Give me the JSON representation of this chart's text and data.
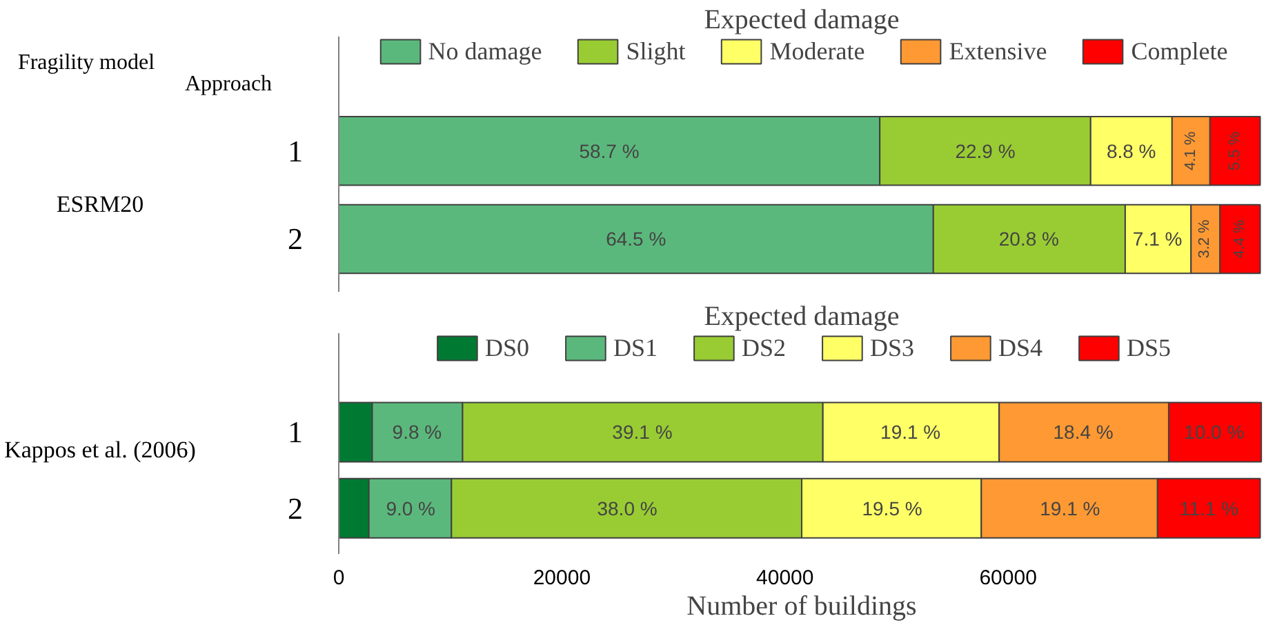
{
  "chart_data": [
    {
      "type": "bar",
      "orientation": "horizontal",
      "stacked": true,
      "title": "Expected damage",
      "categories": [
        "1",
        "2"
      ],
      "xlim": [
        0,
        83000
      ],
      "legend": "top",
      "tick_labels": "y",
      "annotations": [
        "Fragility model",
        "Approach",
        "ESRM20",
        {
          "text": "58.7 %",
          "x": 24245,
          "y": "1"
        },
        {
          "text": "22.9 %",
          "x": 57950,
          "y": "1"
        },
        {
          "text": "8.8 %",
          "x": 71045,
          "y": "1"
        },
        {
          "text": "4.1 %",
          "x": 76375,
          "y": "1"
        },
        {
          "text": "5.5 %",
          "x": 80340,
          "y": "1"
        },
        {
          "text": "64.5 %",
          "x": 26640,
          "y": "2"
        },
        {
          "text": "20.8 %",
          "x": 61870,
          "y": "2"
        },
        {
          "text": "7.1 %",
          "x": 73390,
          "y": "2"
        },
        {
          "text": "3.2 %",
          "x": 77640,
          "y": "2"
        },
        {
          "text": "4.4 %",
          "x": 80775,
          "y": "2"
        }
      ],
      "series": [
        {
          "name": "No damage",
          "color": "#5bb87c",
          "values": [
            48500,
            53300
          ]
        },
        {
          "name": "Slight",
          "color": "#99cc33",
          "values": [
            18900,
            17200
          ]
        },
        {
          "name": "Moderate",
          "color": "#ffff66",
          "values": [
            7300,
            5900
          ]
        },
        {
          "name": "Extensive",
          "color": "#ff9933",
          "values": [
            3400,
            2600
          ]
        },
        {
          "name": "Complete",
          "color": "#ff0000",
          "values": [
            4500,
            3600
          ]
        }
      ]
    },
    {
      "type": "bar",
      "orientation": "horizontal",
      "stacked": true,
      "title": "Expected damage",
      "categories": [
        "1",
        "2"
      ],
      "xlim": [
        0,
        83000
      ],
      "xticks": [
        0,
        20000,
        40000,
        60000
      ],
      "xlabel": "Number of buildings",
      "legend": "top",
      "annotations": [
        "Kappos et al. (2006)",
        {
          "text": "9.8 %",
          "x": 7015,
          "y": "1"
        },
        {
          "text": "39.1 %",
          "x": 27210,
          "y": "1"
        },
        {
          "text": "19.1 %",
          "x": 51250,
          "y": "1"
        },
        {
          "text": "18.4 %",
          "x": 66740,
          "y": "1"
        },
        {
          "text": "10.0 %",
          "x": 78470,
          "y": "1"
        },
        {
          "text": "9.0 %",
          "x": 6445,
          "y": "2"
        },
        {
          "text": "38.0 %",
          "x": 25855,
          "y": "2"
        },
        {
          "text": "19.5 %",
          "x": 49605,
          "y": "2"
        },
        {
          "text": "19.1 %",
          "x": 65550,
          "y": "2"
        },
        {
          "text": "11.1 %",
          "x": 78025,
          "y": "2"
        }
      ],
      "series": [
        {
          "name": "DS0",
          "color": "#007a33",
          "values": [
            3000,
            2700
          ]
        },
        {
          "name": "DS1",
          "color": "#5bb87c",
          "values": [
            8100,
            7400
          ]
        },
        {
          "name": "DS2",
          "color": "#99cc33",
          "values": [
            32300,
            31400
          ]
        },
        {
          "name": "DS3",
          "color": "#ffff66",
          "values": [
            15800,
            16100
          ]
        },
        {
          "name": "DS4",
          "color": "#ff9933",
          "values": [
            15200,
            15800
          ]
        },
        {
          "name": "DS5",
          "color": "#ff0000",
          "values": [
            8300,
            9200
          ]
        }
      ]
    }
  ]
}
